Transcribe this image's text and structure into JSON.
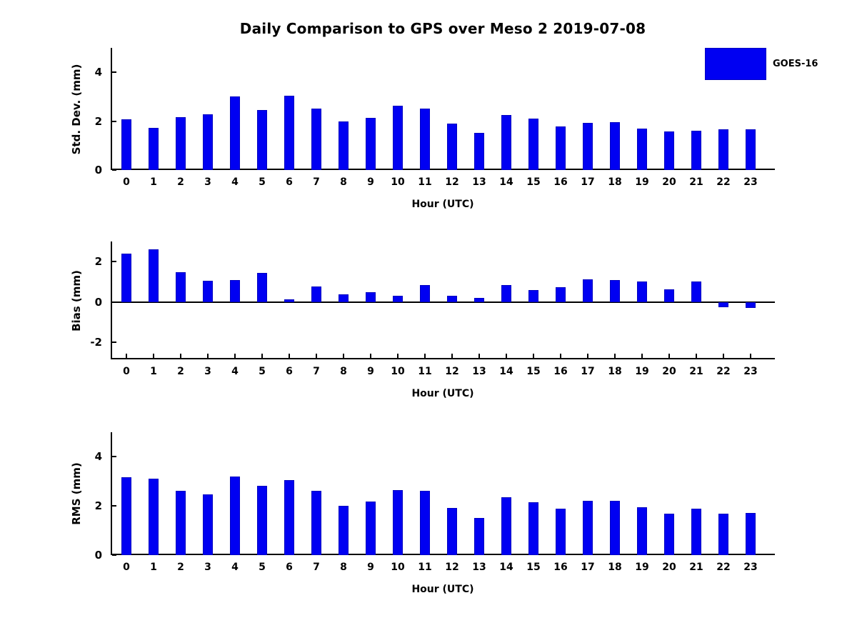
{
  "title": "Daily Comparison to GPS over Meso 2 2019-07-08",
  "legend": {
    "label": "GOES-16"
  },
  "colors": {
    "bar_fill": "#0000f2",
    "bar_edge": "#0000c0",
    "axis": "#000000",
    "text": "#000000"
  },
  "chart_data": [
    {
      "type": "bar",
      "series_name": "GOES-16",
      "ylabel": "Std. Dev. (mm)",
      "xlabel": "Hour (UTC)",
      "categories": [
        "0",
        "1",
        "2",
        "3",
        "4",
        "5",
        "6",
        "7",
        "8",
        "9",
        "10",
        "11",
        "12",
        "13",
        "14",
        "15",
        "16",
        "17",
        "18",
        "19",
        "20",
        "21",
        "22",
        "23"
      ],
      "values": [
        2.07,
        1.72,
        2.17,
        2.27,
        3.0,
        2.46,
        3.05,
        2.52,
        1.98,
        2.13,
        2.62,
        2.51,
        1.9,
        1.53,
        2.26,
        2.1,
        1.78,
        1.92,
        1.97,
        1.71,
        1.59,
        1.6,
        1.67,
        1.67
      ],
      "ylim": [
        0,
        5
      ],
      "yticks": [
        0,
        2,
        4
      ],
      "grid": false,
      "legend_position": "upper-right-outside"
    },
    {
      "type": "bar",
      "series_name": "GOES-16",
      "ylabel": "Bias (mm)",
      "xlabel": "Hour (UTC)",
      "categories": [
        "0",
        "1",
        "2",
        "3",
        "4",
        "5",
        "6",
        "7",
        "8",
        "9",
        "10",
        "11",
        "12",
        "13",
        "14",
        "15",
        "16",
        "17",
        "18",
        "19",
        "20",
        "21",
        "22",
        "23"
      ],
      "values": [
        2.4,
        2.61,
        1.48,
        1.06,
        1.1,
        1.44,
        0.13,
        0.77,
        0.39,
        0.48,
        0.31,
        0.83,
        0.29,
        0.2,
        0.82,
        0.58,
        0.73,
        1.12,
        1.07,
        1.01,
        0.63,
        1.03,
        -0.26,
        -0.3
      ],
      "ylim": [
        -2.85,
        3.0
      ],
      "yticks": [
        -2,
        0,
        2
      ],
      "grid": false
    },
    {
      "type": "bar",
      "series_name": "GOES-16",
      "ylabel": "RMS (mm)",
      "xlabel": "Hour (UTC)",
      "categories": [
        "0",
        "1",
        "2",
        "3",
        "4",
        "5",
        "6",
        "7",
        "8",
        "9",
        "10",
        "11",
        "12",
        "13",
        "14",
        "15",
        "16",
        "17",
        "18",
        "19",
        "20",
        "21",
        "22",
        "23"
      ],
      "values": [
        3.18,
        3.1,
        2.61,
        2.46,
        3.21,
        2.83,
        3.06,
        2.62,
        2.0,
        2.17,
        2.64,
        2.61,
        1.91,
        1.51,
        2.36,
        2.15,
        1.89,
        2.2,
        2.22,
        1.96,
        1.68,
        1.88,
        1.68,
        1.71
      ],
      "ylim": [
        0,
        5
      ],
      "yticks": [
        0,
        2,
        4
      ],
      "grid": false
    }
  ]
}
